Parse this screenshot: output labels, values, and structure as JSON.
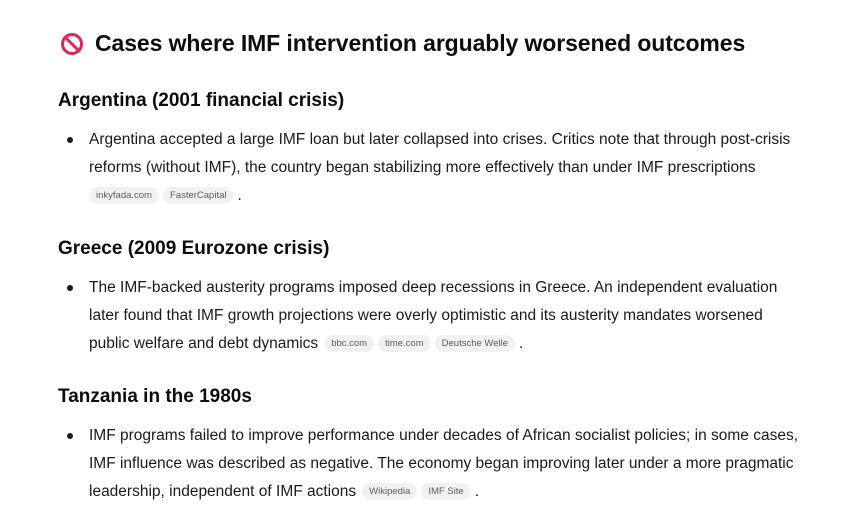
{
  "title": {
    "icon": "no-entry-icon",
    "text": "Cases where IMF intervention arguably worsened outcomes"
  },
  "sections": [
    {
      "heading": "Argentina (2001 financial crisis)",
      "lines": [
        "Argentina accepted a large IMF loan but later collapsed into crises. Critics note that through post-crisis",
        "reforms (without IMF), the country began stabilizing more effectively than under IMF prescriptions"
      ],
      "sources": [
        "inkyfada.com",
        "FasterCapital"
      ],
      "period": "."
    },
    {
      "heading": "Greece (2009 Eurozone crisis)",
      "lines": [
        "The IMF-backed austerity programs imposed deep recessions in Greece. An independent evaluation",
        "later found that IMF growth projections were overly optimistic and its austerity mandates worsened",
        "public welfare and debt dynamics"
      ],
      "sources": [
        "bbc.com",
        "time.com",
        "Deutsche Welle"
      ],
      "period": "."
    },
    {
      "heading": "Tanzania in the 1980s",
      "lines": [
        "IMF programs failed to improve performance under decades of African socialist policies; in some cases,",
        "IMF influence was described as negative. The economy began improving later under a more pragmatic",
        "leadership, independent of IMF actions"
      ],
      "sources": [
        "Wikipedia",
        "IMF Site"
      ],
      "period": "."
    }
  ],
  "colors": {
    "text": "#0d0d0d",
    "icon_red": "#e0245e",
    "chip_bg": "#f1f1f1",
    "chip_text": "#5d5d5d"
  }
}
